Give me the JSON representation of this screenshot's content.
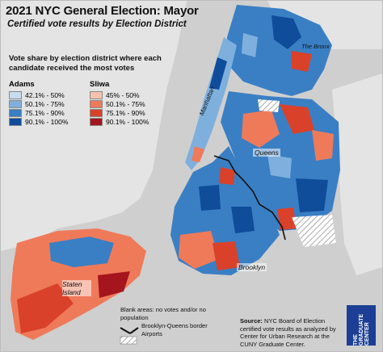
{
  "title": "2021 NYC General Election: Mayor",
  "subtitle": "Certified vote results by Election District",
  "legend": {
    "heading": "Vote share by election district where each candidate received the most votes",
    "groups": [
      {
        "candidate": "Adams",
        "bins": [
          {
            "label": "42.1% - 50%",
            "color": "#c8dbef"
          },
          {
            "label": "50.1% - 75%",
            "color": "#7fb0dd"
          },
          {
            "label": "75.1% - 90%",
            "color": "#3a7fc4"
          },
          {
            "label": "90.1% - 100%",
            "color": "#0f4c9a"
          }
        ]
      },
      {
        "candidate": "Sliwa",
        "bins": [
          {
            "label": "45% - 50%",
            "color": "#f7c1ae"
          },
          {
            "label": "50.1% - 75%",
            "color": "#ef7a5a"
          },
          {
            "label": "75.1% - 90%",
            "color": "#d9412a"
          },
          {
            "label": "90.1% - 100%",
            "color": "#a5151d"
          }
        ]
      }
    ]
  },
  "places": {
    "bronx": "The Bronx",
    "manhattan": "Manhattan",
    "queens": "Queens",
    "brooklyn": "Brooklyn",
    "staten_island": "Staten Island"
  },
  "notes": {
    "blank": "Blank areas: no votes and/or no population",
    "border": "Brooklyn-Queens border",
    "airports": "Airports"
  },
  "source": {
    "label": "Source:",
    "text": "NYC Board of Election certified vote results as analyzed by Center for Urban Research at the CUNY Graduate Center."
  },
  "logo": {
    "text": "THE GRADUATE CENTER"
  }
}
